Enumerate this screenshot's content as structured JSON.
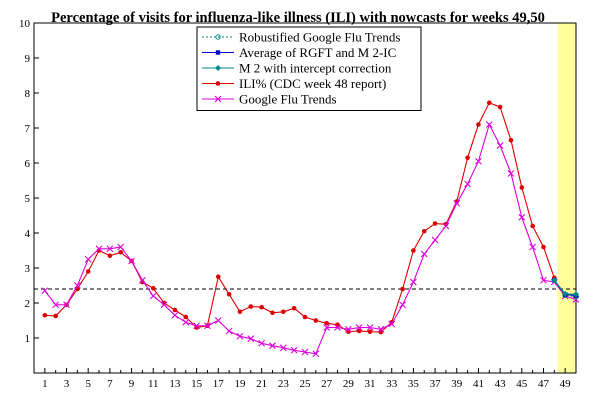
{
  "chart_data": {
    "type": "line",
    "title": "Percentage of visits for influenza-like illness (ILI) with nowcasts for weeks 49,50",
    "xlabel": "",
    "ylabel": "",
    "xlim": [
      0,
      50
    ],
    "ylim": [
      0,
      10
    ],
    "x_ticks": [
      1,
      3,
      5,
      7,
      9,
      11,
      13,
      15,
      17,
      19,
      21,
      23,
      25,
      27,
      29,
      31,
      33,
      35,
      37,
      39,
      41,
      43,
      45,
      47,
      49
    ],
    "y_ticks": [
      1,
      2,
      3,
      4,
      5,
      6,
      7,
      8,
      9,
      10
    ],
    "grid": false,
    "legend_position": "top-center",
    "baseline": {
      "y": 2.4,
      "color": "#000000",
      "style": "dashed"
    },
    "highlight": {
      "x_start": 48.3,
      "x_end": 50.0,
      "color": "#ffff99"
    },
    "series": [
      {
        "name": "Robustified Google Flu Trends",
        "color": "#008b8b",
        "style": "dotted",
        "marker": "circle",
        "points": [
          [
            48,
            2.65
          ],
          [
            49,
            2.22
          ],
          [
            50,
            2.18
          ]
        ]
      },
      {
        "name": "Average of RGFT and M 2-IC",
        "color": "#0000cc",
        "style": "solid",
        "marker": "square",
        "points": [
          [
            48,
            2.65
          ],
          [
            49,
            2.24
          ],
          [
            50,
            2.22
          ]
        ]
      },
      {
        "name": "M 2 with intercept correction",
        "color": "#008b8b",
        "style": "solid",
        "marker": "diamond",
        "points": [
          [
            48,
            2.65
          ],
          [
            49,
            2.26
          ],
          [
            50,
            2.25
          ]
        ]
      },
      {
        "name": "ILI% (CDC week 48 report)",
        "color": "#dd0000",
        "style": "solid",
        "marker": "dot",
        "points": [
          [
            1,
            1.65
          ],
          [
            2,
            1.63
          ],
          [
            3,
            1.95
          ],
          [
            4,
            2.4
          ],
          [
            5,
            2.9
          ],
          [
            6,
            3.5
          ],
          [
            7,
            3.35
          ],
          [
            8,
            3.45
          ],
          [
            9,
            3.2
          ],
          [
            10,
            2.6
          ],
          [
            11,
            2.42
          ],
          [
            12,
            2.0
          ],
          [
            13,
            1.8
          ],
          [
            14,
            1.6
          ],
          [
            15,
            1.3
          ],
          [
            16,
            1.35
          ],
          [
            17,
            2.75
          ],
          [
            18,
            2.25
          ],
          [
            19,
            1.75
          ],
          [
            20,
            1.9
          ],
          [
            21,
            1.88
          ],
          [
            22,
            1.72
          ],
          [
            23,
            1.75
          ],
          [
            24,
            1.85
          ],
          [
            25,
            1.6
          ],
          [
            26,
            1.5
          ],
          [
            27,
            1.42
          ],
          [
            28,
            1.38
          ],
          [
            29,
            1.18
          ],
          [
            30,
            1.2
          ],
          [
            31,
            1.18
          ],
          [
            32,
            1.17
          ],
          [
            33,
            1.45
          ],
          [
            34,
            2.4
          ],
          [
            35,
            3.5
          ],
          [
            36,
            4.05
          ],
          [
            37,
            4.27
          ],
          [
            38,
            4.25
          ],
          [
            39,
            4.9
          ],
          [
            40,
            6.15
          ],
          [
            41,
            7.1
          ],
          [
            42,
            7.72
          ],
          [
            43,
            7.6
          ],
          [
            44,
            6.65
          ],
          [
            45,
            5.3
          ],
          [
            46,
            4.2
          ],
          [
            47,
            3.6
          ],
          [
            48,
            2.72
          ]
        ]
      },
      {
        "name": "Google Flu Trends",
        "color": "#dd00dd",
        "style": "solid",
        "marker": "x",
        "points": [
          [
            1,
            2.35
          ],
          [
            2,
            1.95
          ],
          [
            3,
            1.95
          ],
          [
            4,
            2.5
          ],
          [
            5,
            3.25
          ],
          [
            6,
            3.55
          ],
          [
            7,
            3.55
          ],
          [
            8,
            3.6
          ],
          [
            9,
            3.2
          ],
          [
            10,
            2.65
          ],
          [
            11,
            2.2
          ],
          [
            12,
            1.95
          ],
          [
            13,
            1.65
          ],
          [
            14,
            1.45
          ],
          [
            15,
            1.35
          ],
          [
            16,
            1.35
          ],
          [
            17,
            1.5
          ],
          [
            18,
            1.2
          ],
          [
            19,
            1.05
          ],
          [
            20,
            0.98
          ],
          [
            21,
            0.85
          ],
          [
            22,
            0.78
          ],
          [
            23,
            0.72
          ],
          [
            24,
            0.65
          ],
          [
            25,
            0.6
          ],
          [
            26,
            0.55
          ],
          [
            27,
            1.3
          ],
          [
            28,
            1.3
          ],
          [
            29,
            1.25
          ],
          [
            30,
            1.3
          ],
          [
            31,
            1.3
          ],
          [
            32,
            1.25
          ],
          [
            33,
            1.4
          ],
          [
            34,
            1.95
          ],
          [
            35,
            2.6
          ],
          [
            36,
            3.4
          ],
          [
            37,
            3.8
          ],
          [
            38,
            4.2
          ],
          [
            39,
            4.85
          ],
          [
            40,
            5.4
          ],
          [
            41,
            6.05
          ],
          [
            42,
            7.1
          ],
          [
            43,
            6.5
          ],
          [
            44,
            5.7
          ],
          [
            45,
            4.45
          ],
          [
            46,
            3.6
          ],
          [
            47,
            2.65
          ],
          [
            48,
            2.6
          ],
          [
            49,
            2.2
          ],
          [
            50,
            2.1
          ]
        ]
      }
    ]
  }
}
